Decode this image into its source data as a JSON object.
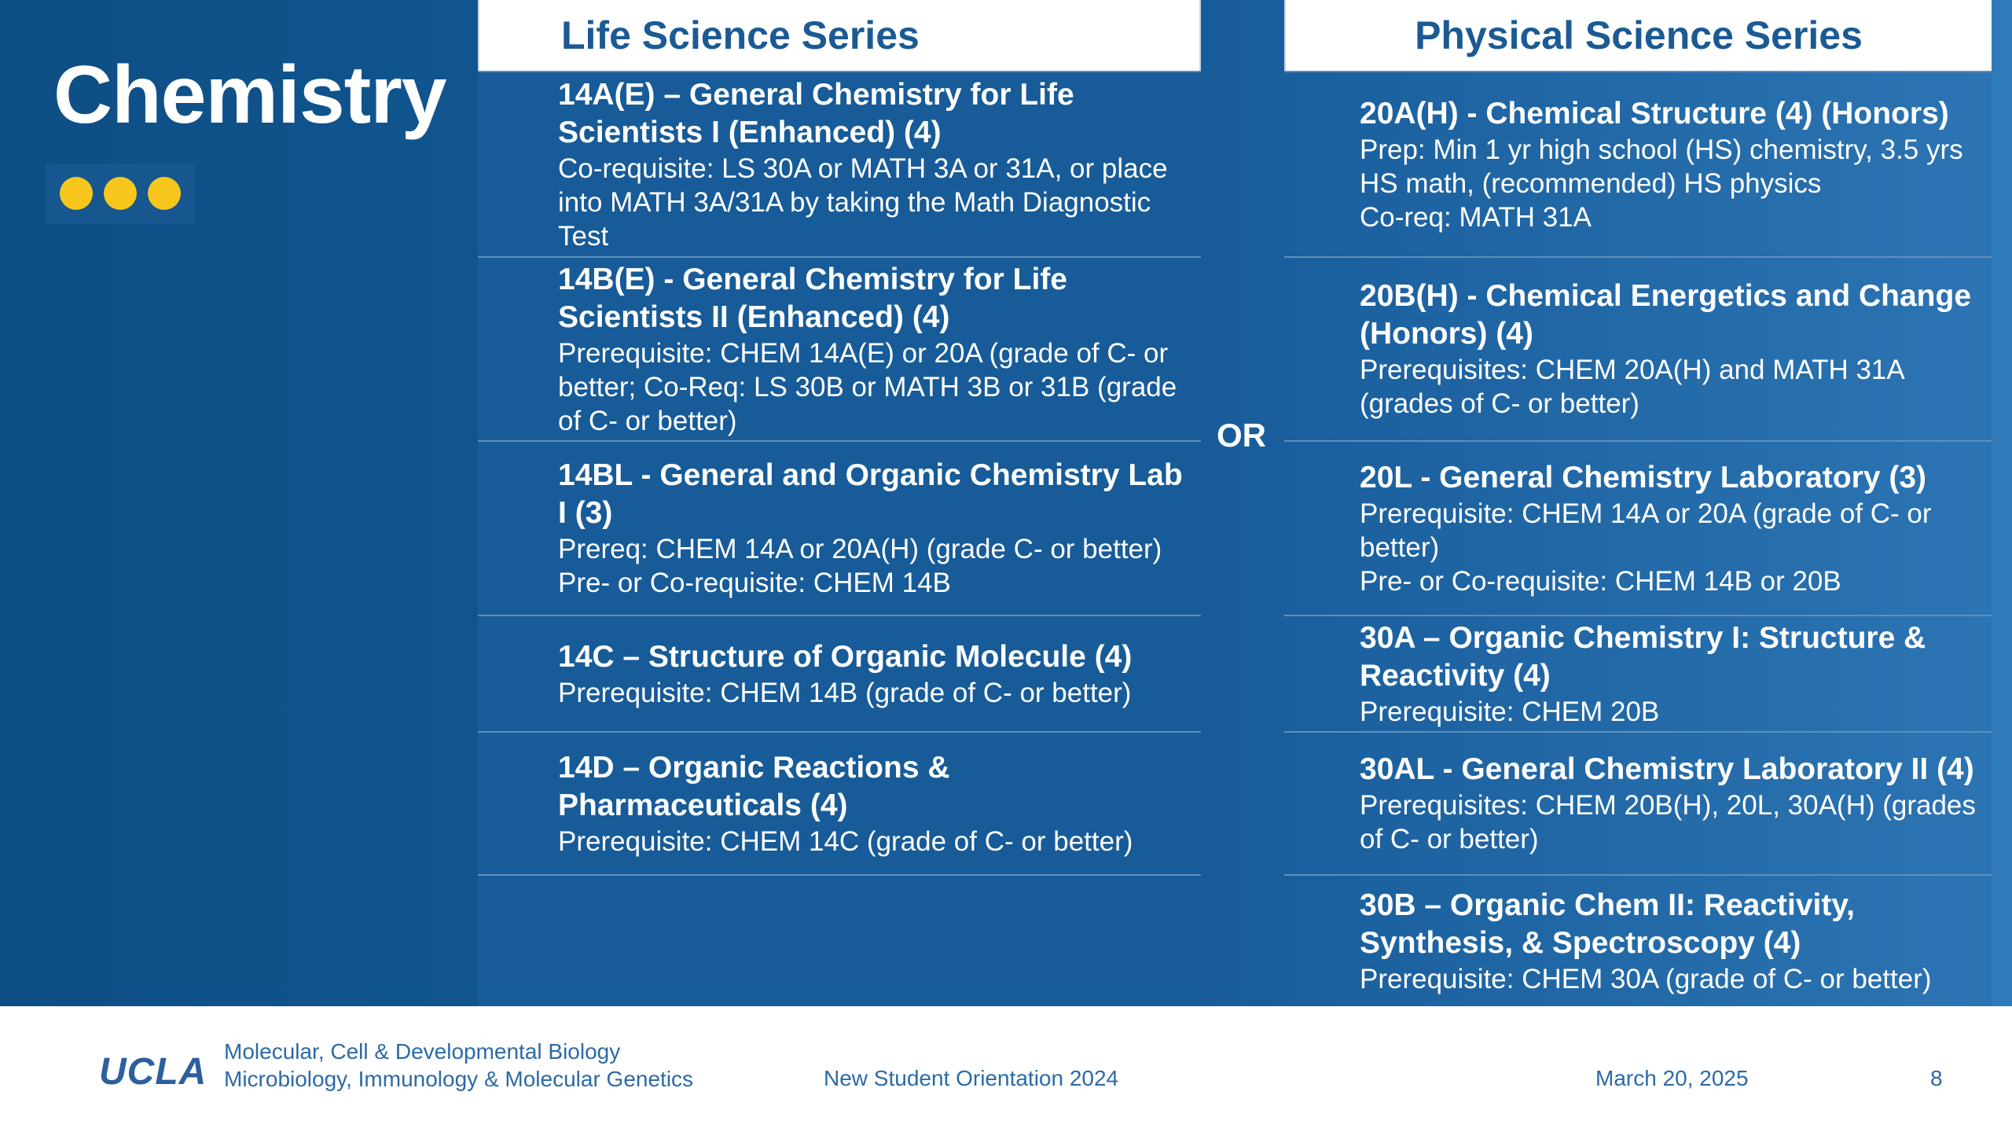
{
  "title": "Chemistry",
  "separator": "OR",
  "life": {
    "heading": "Life Science Series",
    "courses": [
      {
        "code": "14A(E) – General Chemistry for Life Scientists I (Enhanced) (4)",
        "reqs": [
          "Co-requisite: LS 30A or MATH 3A or 31A, or place into MATH 3A/31A by taking the Math Diagnostic Test"
        ]
      },
      {
        "code": "14B(E) - General Chemistry for Life Scientists II (Enhanced) (4)",
        "reqs": [
          "Prerequisite: CHEM 14A(E) or 20A (grade of C- or better; Co-Req: LS 30B or MATH 3B or 31B (grade of C- or better)"
        ]
      },
      {
        "code": "14BL - General and Organic Chemistry Lab I (3)",
        "reqs": [
          "Prereq: CHEM 14A or 20A(H) (grade C- or better)",
          "Pre- or Co-requisite: CHEM 14B"
        ]
      },
      {
        "code": "14C – Structure of Organic Molecule (4)",
        "reqs": [
          "Prerequisite: CHEM 14B (grade of C- or better)"
        ]
      },
      {
        "code": "14D – Organic Reactions & Pharmaceuticals (4)",
        "reqs": [
          "Prerequisite: CHEM 14C (grade of C- or better)"
        ]
      }
    ]
  },
  "phys": {
    "heading": "Physical Science Series",
    "courses": [
      {
        "code": "20A(H) - Chemical Structure (4) (Honors)",
        "reqs": [
          "Prep: Min 1 yr high school (HS) chemistry, 3.5 yrs HS math, (recommended) HS physics",
          "Co-req: MATH 31A"
        ]
      },
      {
        "code": "20B(H) - Chemical Energetics and Change (Honors) (4)",
        "reqs": [
          "Prerequisites: CHEM 20A(H) and MATH 31A (grades of C- or better)"
        ]
      },
      {
        "code": "20L - General Chemistry Laboratory (3)",
        "reqs": [
          "Prerequisite: CHEM 14A or 20A (grade of C- or better)",
          "Pre- or Co-requisite: CHEM 14B or 20B"
        ]
      },
      {
        "code": "30A – Organic Chemistry I: Structure & Reactivity (4)",
        "reqs": [
          "Prerequisite: CHEM 20B"
        ]
      },
      {
        "code": "30AL - General Chemistry Laboratory II (4)",
        "reqs": [
          "Prerequisites: CHEM 20B(H), 20L, 30A(H) (grades of C- or better)"
        ]
      },
      {
        "code": "30B – Organic Chem II: Reactivity, Synthesis, & Spectroscopy (4)",
        "reqs": [
          "Prerequisite: CHEM 30A (grade of C- or better)"
        ]
      }
    ]
  },
  "footer": {
    "logo": "UCLA",
    "dept_line1": "Molecular, Cell & Developmental Biology",
    "dept_line2": "Microbiology, Immunology & Molecular Genetics",
    "event": "New Student Orientation 2024",
    "date": "March 20, 2025",
    "page": "8"
  },
  "colors": {
    "background": "#155996",
    "accent_dots": "#f7c71d",
    "heading_text": "#1b5a94"
  }
}
